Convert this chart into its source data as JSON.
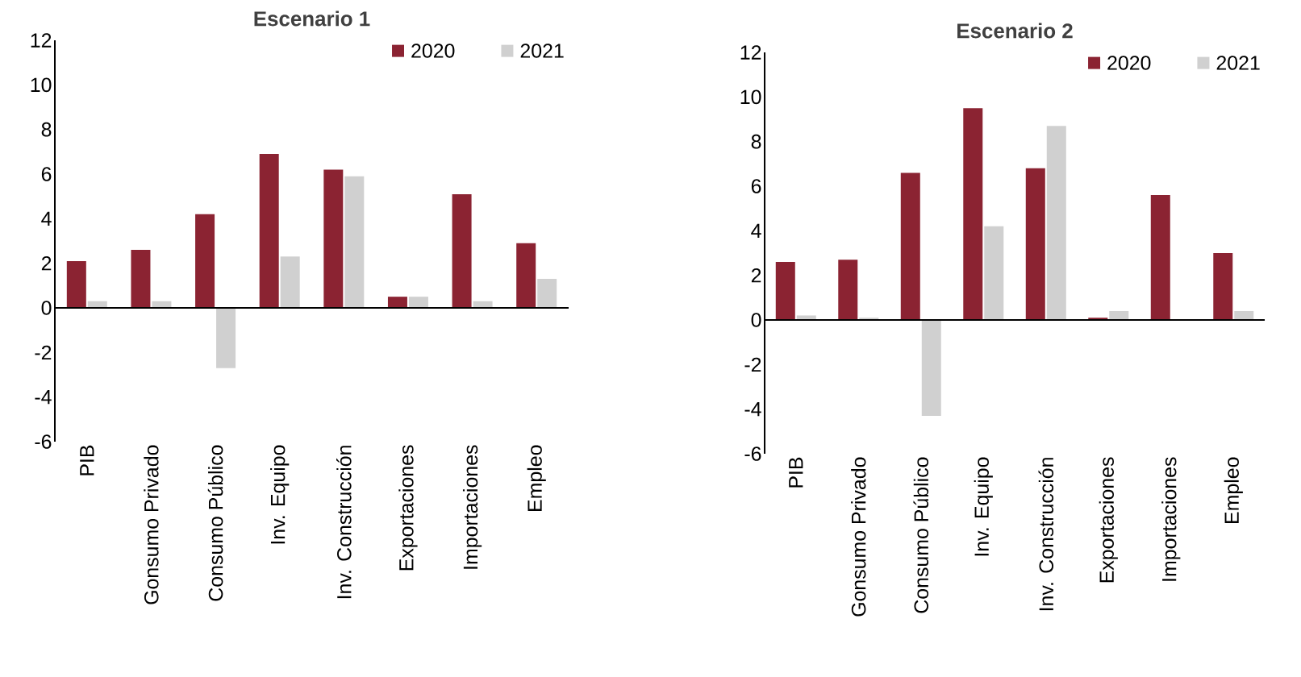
{
  "chart_data": [
    {
      "type": "bar",
      "title": "Escenario 1",
      "categories": [
        "PIB",
        "Gonsumo Privado",
        "Consumo Público",
        "Inv. Equipo",
        "Inv. Construcción",
        "Exportaciones",
        "Importaciones",
        "Empleo"
      ],
      "series": [
        {
          "name": "2020",
          "color": "#8b2332",
          "values": [
            2.1,
            2.6,
            4.2,
            6.9,
            6.2,
            0.5,
            5.1,
            2.9
          ]
        },
        {
          "name": "2021",
          "color": "#d0d0d0",
          "values": [
            0.3,
            0.3,
            -2.7,
            2.3,
            5.9,
            0.5,
            0.3,
            1.3
          ]
        }
      ],
      "ylim": [
        -6,
        12
      ],
      "yticks": [
        -6,
        -4,
        -2,
        0,
        2,
        4,
        6,
        8,
        10,
        12
      ],
      "legend": "top right"
    },
    {
      "type": "bar",
      "title": "Escenario 2",
      "categories": [
        "PIB",
        "Gonsumo Privado",
        "Consumo Público",
        "Inv. Equipo",
        "Inv. Construcción",
        "Exportaciones",
        "Importaciones",
        "Empleo"
      ],
      "series": [
        {
          "name": "2020",
          "color": "#8b2332",
          "values": [
            2.6,
            2.7,
            6.6,
            9.5,
            6.8,
            0.1,
            5.6,
            3.0
          ]
        },
        {
          "name": "2021",
          "color": "#d0d0d0",
          "values": [
            0.2,
            0.1,
            -4.3,
            4.2,
            8.7,
            0.4,
            0,
            0.4
          ]
        }
      ],
      "ylim": [
        -6,
        12
      ],
      "yticks": [
        -6,
        -4,
        -2,
        0,
        2,
        4,
        6,
        8,
        10,
        12
      ],
      "legend": "top right"
    }
  ]
}
